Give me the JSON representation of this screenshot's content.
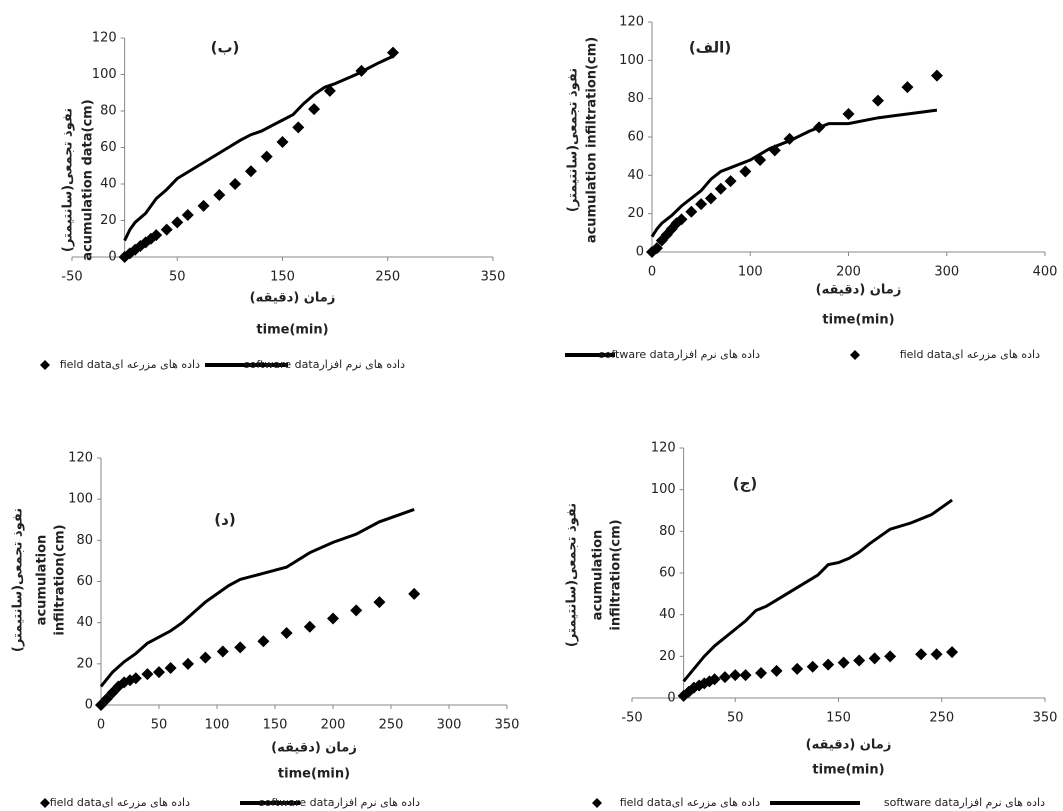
{
  "chart_data": [
    {
      "type": "scatter_line",
      "title": "(ب)",
      "ylabel": [
        "نفوذ تجمعی(سانتیمتر)",
        "acumulation data(cm)"
      ],
      "xlabel": [
        "زمان (دقیقه)",
        "time(min)"
      ],
      "xlim": [
        -50,
        350
      ],
      "xticks": [
        -50,
        50,
        150,
        250,
        350
      ],
      "ylim": [
        0,
        120
      ],
      "yticks": [
        0,
        20,
        40,
        60,
        80,
        100,
        120
      ],
      "grid": false,
      "series": [
        {
          "name": "داده های مزرعه ایfield data",
          "kind": "marker",
          "color": "#000000",
          "x": [
            0,
            5,
            10,
            15,
            20,
            25,
            30,
            40,
            50,
            60,
            75,
            90,
            105,
            120,
            135,
            150,
            165,
            180,
            195,
            225,
            255
          ],
          "values": [
            0,
            2,
            4,
            6,
            8,
            10,
            12,
            15,
            19,
            23,
            28,
            34,
            40,
            47,
            55,
            63,
            71,
            81,
            91,
            102,
            112
          ]
        },
        {
          "name": "داده های نرم افزارsoftware data",
          "kind": "line",
          "color": "#000000",
          "x": [
            0,
            5,
            10,
            20,
            30,
            40,
            50,
            70,
            90,
            110,
            120,
            130,
            140,
            150,
            160,
            170,
            180,
            190,
            200,
            220,
            240,
            255
          ],
          "values": [
            9,
            15,
            19,
            24,
            32,
            37,
            43,
            50,
            57,
            64,
            67,
            69,
            72,
            75,
            78,
            84,
            89,
            93,
            95,
            100,
            106,
            110
          ]
        }
      ]
    },
    {
      "type": "scatter_line",
      "title": "(الف)",
      "ylabel": [
        "نفوذ تجمعی(سانتیمتر)",
        "acumulation infiltration(cm)"
      ],
      "xlabel": [
        "زمان (دقیقه)",
        "time(min)"
      ],
      "xlim": [
        0,
        400
      ],
      "xticks": [
        0,
        100,
        200,
        300,
        400
      ],
      "ylim": [
        0,
        120
      ],
      "yticks": [
        0,
        20,
        40,
        60,
        80,
        100,
        120
      ],
      "grid": false,
      "series": [
        {
          "name": "داده های مزرعه ایfield data",
          "kind": "marker",
          "color": "#000000",
          "x": [
            0,
            5,
            10,
            15,
            20,
            25,
            30,
            40,
            50,
            60,
            70,
            80,
            95,
            110,
            125,
            140,
            170,
            200,
            230,
            260,
            290
          ],
          "values": [
            0,
            2,
            6,
            9,
            12,
            15,
            17,
            21,
            25,
            28,
            33,
            37,
            42,
            48,
            53,
            59,
            65,
            72,
            79,
            86,
            92
          ]
        },
        {
          "name": "داده های نرم افزارsoftware data",
          "kind": "line",
          "color": "#000000",
          "x": [
            0,
            5,
            10,
            20,
            30,
            40,
            50,
            60,
            70,
            80,
            100,
            120,
            140,
            160,
            180,
            200,
            230,
            260,
            290
          ],
          "values": [
            8,
            12,
            15,
            19,
            24,
            28,
            32,
            38,
            42,
            44,
            48,
            54,
            58,
            63,
            67,
            67,
            70,
            72,
            74
          ]
        }
      ]
    },
    {
      "type": "scatter_line",
      "title": "(د)",
      "ylabel": [
        "نفوذ تجمعی(سانتیمتر)",
        "acumulation",
        "infiltration(cm)"
      ],
      "xlabel": [
        "زمان (دقیقه)",
        "time(min)"
      ],
      "xlim": [
        0,
        350
      ],
      "xticks": [
        0,
        50,
        100,
        150,
        200,
        250,
        300,
        350
      ],
      "ylim": [
        0,
        120
      ],
      "yticks": [
        0,
        20,
        40,
        60,
        80,
        100,
        120
      ],
      "grid": false,
      "series": [
        {
          "name": "داده های مزرعه ایfield data",
          "kind": "marker",
          "color": "#000000",
          "x": [
            0,
            5,
            10,
            15,
            20,
            25,
            30,
            40,
            50,
            60,
            75,
            90,
            105,
            120,
            140,
            160,
            180,
            200,
            220,
            240,
            270
          ],
          "values": [
            0,
            3,
            6,
            9,
            11,
            12,
            13,
            15,
            16,
            18,
            20,
            23,
            26,
            28,
            31,
            35,
            38,
            42,
            46,
            50,
            54
          ]
        },
        {
          "name": "داده های نرم افزارsoftware data",
          "kind": "line",
          "color": "#000000",
          "x": [
            0,
            10,
            20,
            30,
            40,
            50,
            60,
            70,
            80,
            90,
            100,
            110,
            120,
            140,
            160,
            180,
            200,
            220,
            240,
            270
          ],
          "values": [
            9,
            16,
            21,
            25,
            30,
            33,
            36,
            40,
            45,
            50,
            54,
            58,
            61,
            64,
            67,
            74,
            79,
            83,
            89,
            95
          ]
        }
      ]
    },
    {
      "type": "scatter_line",
      "title": "(ج)",
      "ylabel": [
        "نفوذ تجمعی(سانتیمتر)",
        "acumulation",
        "infiltration(cm)"
      ],
      "xlabel": [
        "زمان (دقیقه)",
        "time(min)"
      ],
      "xlim": [
        -50,
        350
      ],
      "xticks": [
        -50,
        50,
        150,
        250,
        350
      ],
      "ylim": [
        0,
        120
      ],
      "yticks": [
        0,
        20,
        40,
        60,
        80,
        100,
        120
      ],
      "grid": false,
      "series": [
        {
          "name": "داده های مزرعه ایfield data",
          "kind": "marker",
          "color": "#000000",
          "x": [
            0,
            5,
            10,
            15,
            20,
            25,
            30,
            40,
            50,
            60,
            75,
            90,
            110,
            125,
            140,
            155,
            170,
            185,
            200,
            230,
            245,
            260
          ],
          "values": [
            1,
            3,
            5,
            6,
            7,
            8,
            9,
            10,
            11,
            11,
            12,
            13,
            14,
            15,
            16,
            17,
            18,
            19,
            20,
            21,
            21,
            22
          ]
        },
        {
          "name": "داده های نرم افزارsoftware data",
          "kind": "line",
          "color": "#000000",
          "x": [
            0,
            10,
            20,
            30,
            40,
            50,
            60,
            70,
            80,
            90,
            110,
            130,
            140,
            150,
            160,
            170,
            180,
            200,
            220,
            240,
            260
          ],
          "values": [
            8,
            14,
            20,
            25,
            29,
            33,
            37,
            42,
            44,
            47,
            53,
            59,
            64,
            65,
            67,
            70,
            74,
            81,
            84,
            88,
            95
          ]
        }
      ]
    }
  ]
}
